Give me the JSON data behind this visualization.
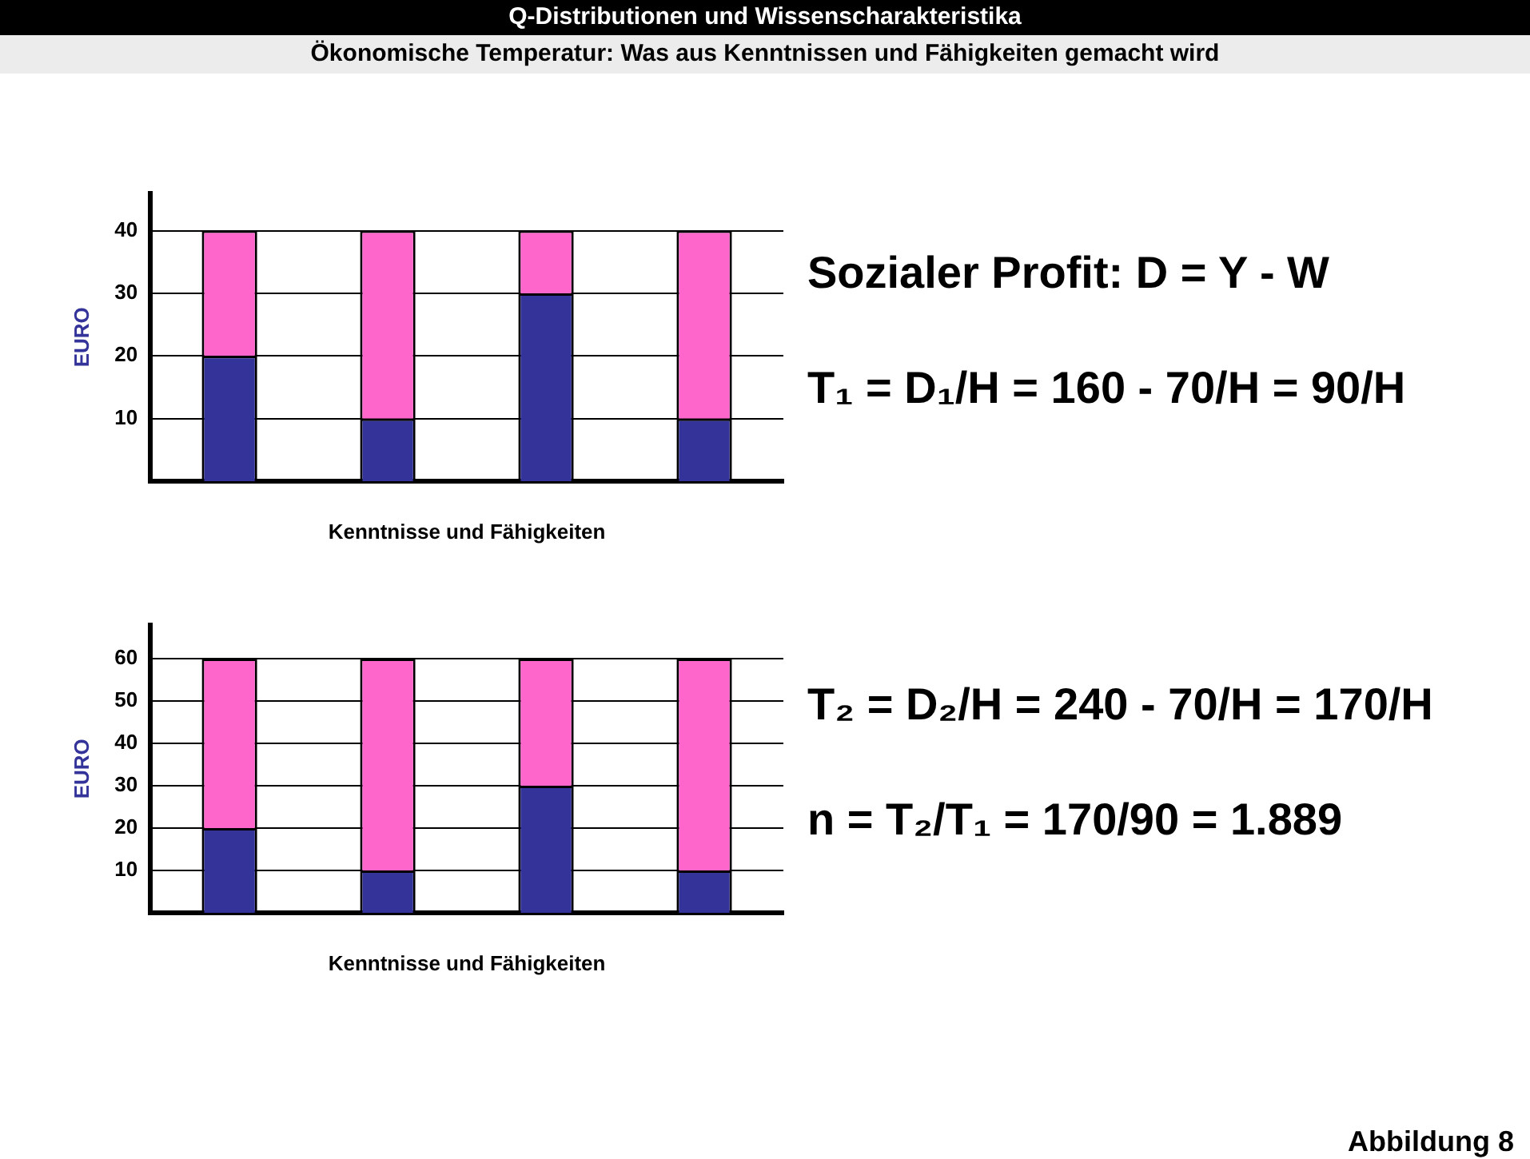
{
  "chart_data": [
    {
      "type": "bar",
      "title": "Q-Distributionen und Wissenscharakteristika",
      "subtitle": "Ökonomische Temperatur: Was aus Kenntnissen und Fähigkeiten gemacht wird",
      "xlabel": "Kenntnisse und Fähigkeiten",
      "ylabel": "EURO",
      "categories": [
        null,
        null,
        null,
        null
      ],
      "stacked": true,
      "series": [
        {
          "color": "#333399",
          "values": [
            20,
            10,
            30,
            10
          ]
        },
        {
          "color": "#ff66cc",
          "values": [
            20,
            30,
            10,
            30
          ]
        }
      ],
      "ylim": [
        0,
        46
      ],
      "yticks": [
        10,
        20,
        30,
        40
      ],
      "grid": "y",
      "legend": false,
      "annotations": [
        "Sozialer Profit: D = Y - W",
        "T₁ = D₁/H = 160 - 70/H = 90/H"
      ]
    },
    {
      "type": "bar",
      "xlabel": "Kenntnisse und Fähigkeiten",
      "ylabel": "EURO",
      "categories": [
        null,
        null,
        null,
        null
      ],
      "stacked": true,
      "series": [
        {
          "color": "#333399",
          "values": [
            20,
            10,
            30,
            10
          ]
        },
        {
          "color": "#ff66cc",
          "values": [
            40,
            50,
            30,
            50
          ]
        }
      ],
      "ylim": [
        0,
        68
      ],
      "yticks": [
        10,
        20,
        30,
        40,
        50,
        60
      ],
      "grid": "y",
      "legend": false,
      "annotations": [
        "T₂ = D₂/H = 240 - 70/H = 170/H",
        "n = T₂/T₁ = 170/90 = 1.889",
        "Abbildung 8"
      ]
    }
  ]
}
